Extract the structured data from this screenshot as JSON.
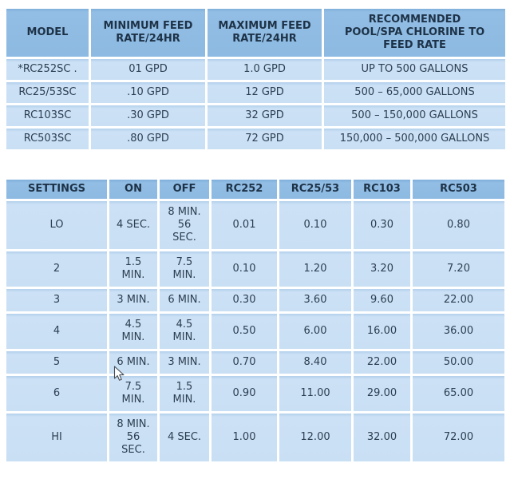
{
  "colors": {
    "header_bg": "#8dbae2",
    "cell_bg": "#c9dff3",
    "cell_top_edge": "#b3d0ec",
    "grid_gap": "#ffffff",
    "header_text": "#1d3247",
    "cell_text": "#2c3e52"
  },
  "feed_rate_table": {
    "columns": [
      "MODEL",
      "MINIMUM FEED\nRATE/24HR",
      "MAXIMUM FEED\nRATE/24HR",
      "RECOMMENDED\nPOOL/SPA CHLORINE TO\nFEED RATE"
    ],
    "rows": [
      [
        "*RC252SC .",
        "01 GPD",
        "1.0 GPD",
        "UP TO 500 GALLONS"
      ],
      [
        "RC25/53SC",
        ".10 GPD",
        "12 GPD",
        "500 – 65,000 GALLONS"
      ],
      [
        "RC103SC",
        ".30 GPD",
        "32 GPD",
        "500 – 150,000 GALLONS"
      ],
      [
        "RC503SC",
        ".80 GPD",
        "72 GPD",
        "150,000 – 500,000 GALLONS"
      ]
    ]
  },
  "settings_table": {
    "columns": [
      "SETTINGS",
      "ON",
      "OFF",
      "RC252",
      "RC25/53",
      "RC103",
      "RC503"
    ],
    "rows": [
      [
        "LO",
        "4 SEC.",
        "8 MIN.\n56\nSEC.",
        "0.01",
        "0.10",
        "0.30",
        "0.80"
      ],
      [
        "2",
        "1.5\nMIN.",
        "7.5\nMIN.",
        "0.10",
        "1.20",
        "3.20",
        "7.20"
      ],
      [
        "3",
        "3 MIN.",
        "6 MIN.",
        "0.30",
        "3.60",
        "9.60",
        "22.00"
      ],
      [
        "4",
        "4.5\nMIN.",
        "4.5\nMIN.",
        "0.50",
        "6.00",
        "16.00",
        "36.00"
      ],
      [
        "5",
        "6 MIN.",
        "3 MIN.",
        "0.70",
        "8.40",
        "22.00",
        "50.00"
      ],
      [
        "6",
        "7.5\nMIN.",
        "1.5\nMIN.",
        "0.90",
        "11.00",
        "29.00",
        "65.00"
      ],
      [
        "HI",
        "8 MIN.\n56\nSEC.",
        "4 SEC.",
        "1.00",
        "12.00",
        "32.00",
        "72.00"
      ]
    ]
  },
  "cursor": {
    "visible": true,
    "type": "arrow-pointer"
  }
}
